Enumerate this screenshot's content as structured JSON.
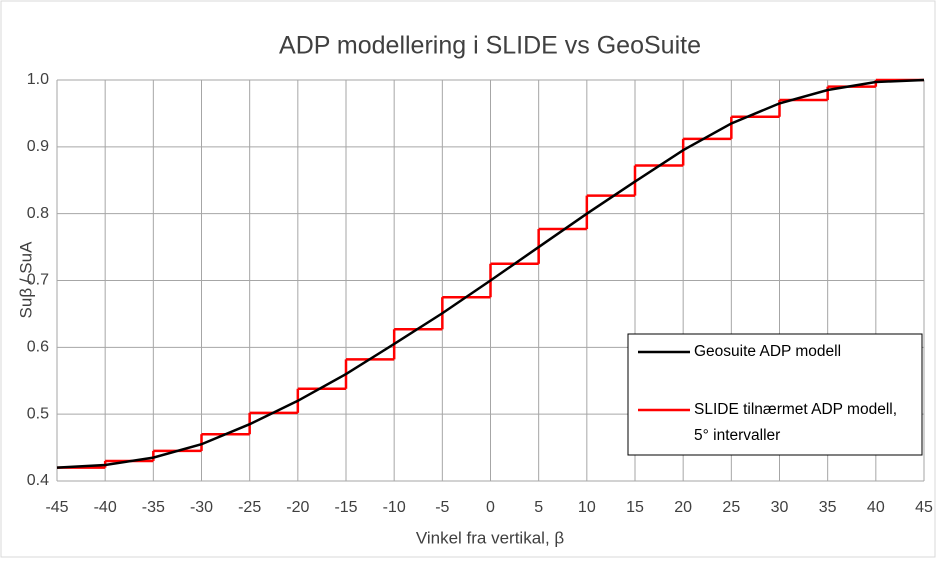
{
  "chart_data": {
    "type": "line",
    "title": "ADP modellering i SLIDE vs GeoSuite",
    "xlabel": "Vinkel fra vertikal, β",
    "ylabel": "Suβ / SuA",
    "xlim": [
      -45,
      45
    ],
    "xticks": [
      -45,
      -40,
      -35,
      -30,
      -25,
      -20,
      -15,
      -10,
      -5,
      0,
      5,
      10,
      15,
      20,
      25,
      30,
      35,
      40,
      45
    ],
    "ylim": [
      0.4,
      1.0
    ],
    "yticks": [
      {
        "value": 0.4,
        "label": "0.4"
      },
      {
        "value": 0.5,
        "label": "0.5"
      },
      {
        "value": 0.6,
        "label": "0.6"
      },
      {
        "value": 0.7,
        "label": "0.7"
      },
      {
        "value": 0.8,
        "label": "0.8"
      },
      {
        "value": 0.9,
        "label": "0.9"
      },
      {
        "value": 1.0,
        "label": "1.0"
      }
    ],
    "grid": true,
    "legend": "lower right",
    "series": [
      {
        "name": "Geosuite ADP modell",
        "color": "#000000",
        "x": [
          -45,
          -40,
          -35,
          -30,
          -25,
          -20,
          -15,
          -10,
          -5,
          0,
          5,
          10,
          15,
          20,
          25,
          30,
          35,
          40,
          45
        ],
        "values": [
          0.42,
          0.424,
          0.435,
          0.455,
          0.485,
          0.52,
          0.56,
          0.605,
          0.651,
          0.7,
          0.75,
          0.8,
          0.848,
          0.895,
          0.935,
          0.965,
          0.985,
          0.997,
          1.0
        ]
      },
      {
        "name": "SLIDE tilnærmet ADP modell, 5° intervaller",
        "color": "#ff0000",
        "step": "post",
        "x": [
          -45,
          -40,
          -35,
          -30,
          -25,
          -20,
          -15,
          -10,
          -5,
          0,
          5,
          10,
          15,
          20,
          25,
          30,
          35,
          40
        ],
        "values": [
          0.42,
          0.43,
          0.445,
          0.47,
          0.502,
          0.538,
          0.582,
          0.627,
          0.675,
          0.725,
          0.777,
          0.827,
          0.872,
          0.912,
          0.945,
          0.97,
          0.99,
          1.0
        ]
      }
    ]
  }
}
